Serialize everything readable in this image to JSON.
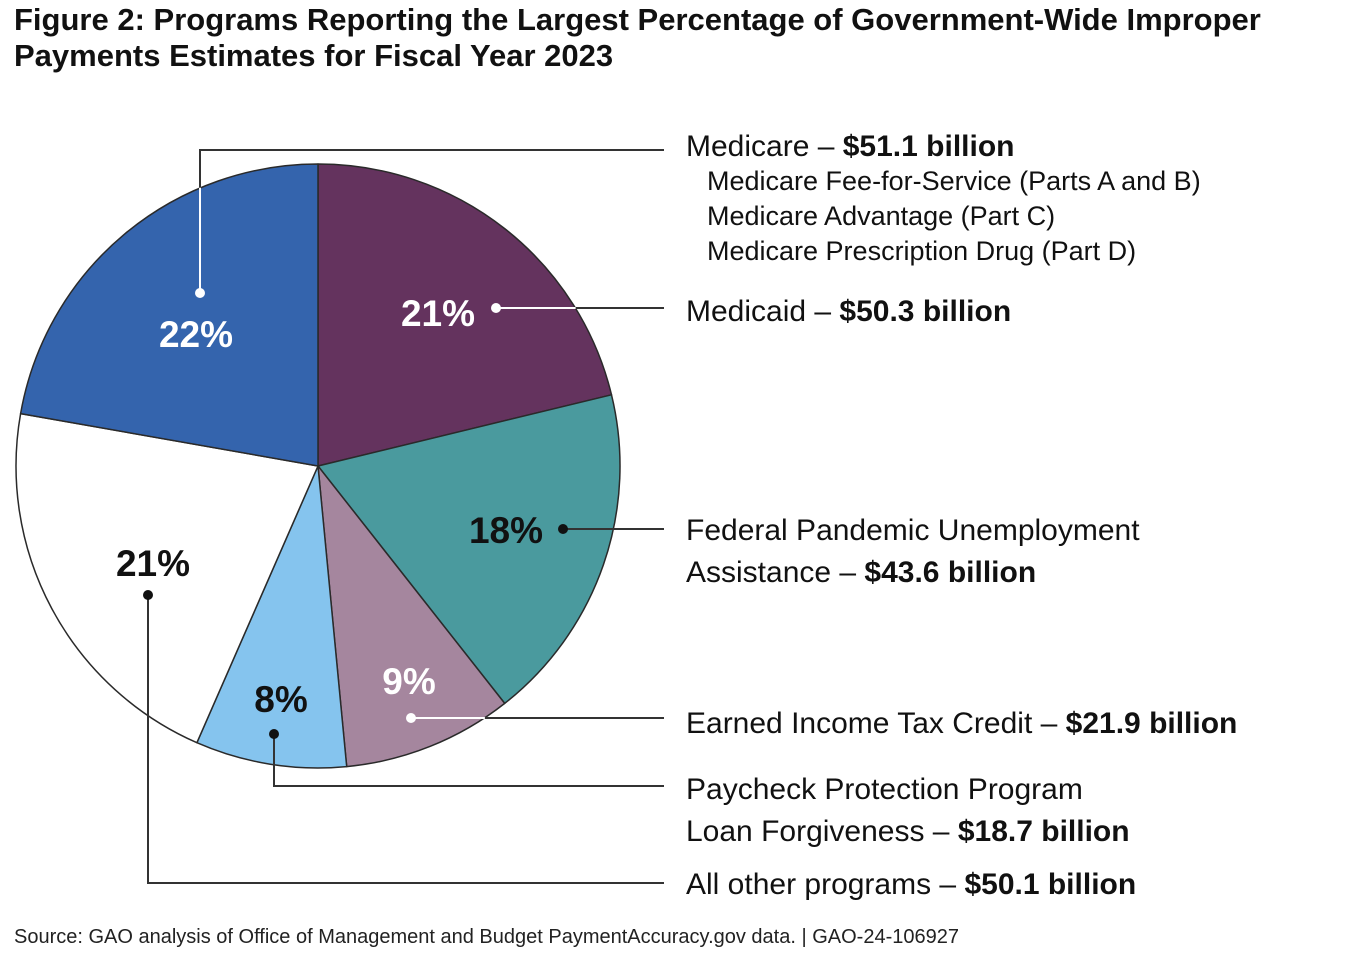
{
  "title": {
    "line1": "Figure 2: Programs Reporting the Largest Percentage of Government-Wide Improper",
    "line2": "Payments Estimates for Fiscal Year 2023"
  },
  "chart_data": {
    "type": "pie",
    "slices": [
      {
        "name": "Medicaid",
        "percent": 21,
        "percent_label": "21%",
        "value_billion": 50.3,
        "label_text": "Medicaid – ",
        "value_text": "$50.3 billion",
        "color": "#64335e",
        "percent_color": "#ffffff"
      },
      {
        "name": "Federal Pandemic Unemployment Assistance",
        "percent": 18,
        "percent_label": "18%",
        "value_billion": 43.6,
        "label_text": "Federal Pandemic Unemployment",
        "label_text_2": "Assistance – ",
        "value_text": "$43.6 billion",
        "color": "#4a9a9e",
        "percent_color": "#111111"
      },
      {
        "name": "Earned Income Tax Credit",
        "percent": 9,
        "percent_label": "9%",
        "value_billion": 21.9,
        "label_text": "Earned Income Tax Credit – ",
        "value_text": "$21.9 billion",
        "color": "#a5869e",
        "percent_color": "#ffffff"
      },
      {
        "name": "Paycheck Protection Program Loan Forgiveness",
        "percent": 8,
        "percent_label": "8%",
        "value_billion": 18.7,
        "label_text": "Paycheck Protection Program",
        "label_text_2": "Loan Forgiveness – ",
        "value_text": "$18.7 billion",
        "color": "#85c4ee",
        "percent_color": "#111111"
      },
      {
        "name": "All other programs",
        "percent": 21,
        "percent_label": "21%",
        "value_billion": 50.1,
        "label_text": "All other programs – ",
        "value_text": "$50.1 billion",
        "color": "#ffffff",
        "percent_color": "#111111"
      },
      {
        "name": "Medicare",
        "percent": 22,
        "percent_label": "22%",
        "value_billion": 51.1,
        "label_text": "Medicare – ",
        "value_text": "$51.1 billion",
        "sub_items": [
          "Medicare Fee-for-Service (Parts A and B)",
          "Medicare Advantage (Part C)",
          "Medicare Prescription Drug (Part D)"
        ],
        "color": "#3464ad",
        "percent_color": "#ffffff"
      }
    ]
  },
  "source": "Source: GAO analysis of Office of Management and Budget PaymentAccuracy.gov data.  |  GAO-24-106927"
}
